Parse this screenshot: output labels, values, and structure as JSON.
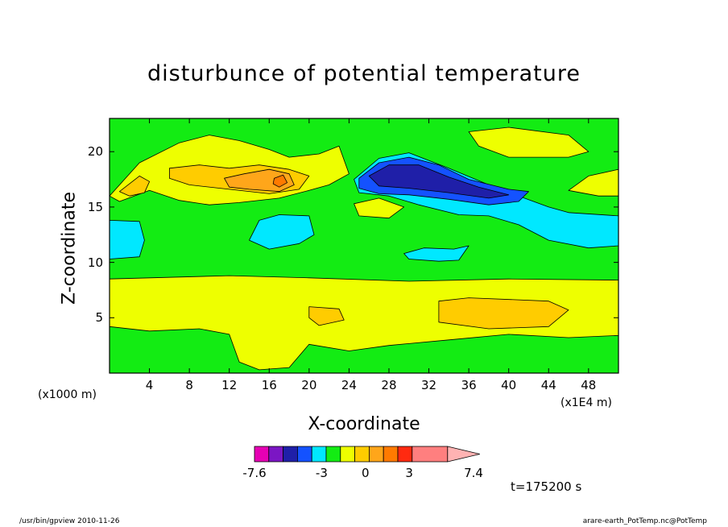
{
  "chart_data": {
    "type": "heatmap",
    "title": "disturbunce of potential temperature",
    "xlabel": "X-coordinate",
    "ylabel": "Z-coordinate",
    "x_unit_left": "(x1000 m)",
    "x_unit_right": "(x1E4 m)",
    "xlim": [
      0,
      51
    ],
    "ylim": [
      0,
      23
    ],
    "x_ticks": [
      4,
      8,
      12,
      16,
      20,
      24,
      28,
      32,
      36,
      40,
      44,
      48
    ],
    "y_ticks": [
      5,
      10,
      15,
      20
    ],
    "time_label": "t=175200 s",
    "colorbar": {
      "colors": [
        "#e600b4",
        "#7b16c4",
        "#1f1fa8",
        "#1452ff",
        "#00e8ff",
        "#13ec13",
        "#eeff00",
        "#ffcc00",
        "#ffa61a",
        "#ff7a00",
        "#ff2a10",
        "#ff7f7f",
        "#ffb3b3"
      ],
      "tick_labels": [
        "-7.6",
        "-3",
        "0",
        "3",
        "7.4"
      ],
      "tick_values": [
        -7.6,
        -3,
        0,
        3,
        7.4
      ]
    },
    "regions": [
      {
        "level": 0,
        "color": "#13ec13",
        "points": [
          [
            0,
            0
          ],
          [
            51,
            0
          ],
          [
            51,
            23
          ],
          [
            0,
            23
          ]
        ]
      },
      {
        "level": 1,
        "color": "#eeff00",
        "points": [
          [
            0,
            8.5
          ],
          [
            12,
            8.8
          ],
          [
            20,
            8.6
          ],
          [
            30,
            8.3
          ],
          [
            40,
            8.5
          ],
          [
            51,
            8.4
          ],
          [
            51,
            3.4
          ],
          [
            46,
            3.2
          ],
          [
            40,
            3.5
          ],
          [
            34,
            3
          ],
          [
            28,
            2.5
          ],
          [
            24,
            2
          ],
          [
            20,
            2.6
          ],
          [
            18,
            0.5
          ],
          [
            15,
            0.3
          ],
          [
            13,
            1
          ],
          [
            12,
            3.5
          ],
          [
            9,
            4
          ],
          [
            4,
            3.8
          ],
          [
            0,
            4.2
          ]
        ]
      },
      {
        "level": 1,
        "color": "#eeff00",
        "points": [
          [
            0,
            16
          ],
          [
            3,
            19
          ],
          [
            7,
            20.8
          ],
          [
            10,
            21.5
          ],
          [
            13,
            21
          ],
          [
            16,
            20.2
          ],
          [
            18,
            19.5
          ],
          [
            21,
            19.8
          ],
          [
            23,
            20.5
          ],
          [
            24,
            18
          ],
          [
            22,
            17
          ],
          [
            20,
            16.5
          ],
          [
            17,
            15.8
          ],
          [
            13,
            15.4
          ],
          [
            10,
            15.2
          ],
          [
            7,
            15.6
          ],
          [
            4,
            16.5
          ],
          [
            1,
            15.5
          ]
        ]
      },
      {
        "level": 1,
        "color": "#eeff00",
        "points": [
          [
            36,
            21.8
          ],
          [
            40,
            22.2
          ],
          [
            46,
            21.5
          ],
          [
            48,
            20
          ],
          [
            46,
            19.5
          ],
          [
            40,
            19.5
          ],
          [
            37,
            20.5
          ]
        ]
      },
      {
        "level": 1,
        "color": "#eeff00",
        "points": [
          [
            46,
            16.5
          ],
          [
            48,
            17.8
          ],
          [
            51,
            18.4
          ],
          [
            51,
            16
          ],
          [
            49,
            16
          ]
        ]
      },
      {
        "level": 1,
        "color": "#eeff00",
        "points": [
          [
            24.5,
            15.3
          ],
          [
            27,
            15.8
          ],
          [
            29.5,
            15
          ],
          [
            28,
            14
          ],
          [
            25,
            14.2
          ]
        ]
      },
      {
        "level": 2,
        "color": "#ffcc00",
        "points": [
          [
            33,
            6.5
          ],
          [
            36,
            6.8
          ],
          [
            44,
            6.5
          ],
          [
            46,
            5.7
          ],
          [
            44,
            4.2
          ],
          [
            38,
            4
          ],
          [
            33,
            4.6
          ]
        ]
      },
      {
        "level": 2,
        "color": "#ffcc00",
        "points": [
          [
            20,
            6
          ],
          [
            23,
            5.8
          ],
          [
            23.5,
            4.8
          ],
          [
            21,
            4.3
          ],
          [
            20,
            5
          ]
        ]
      },
      {
        "level": 2,
        "color": "#ffcc00",
        "points": [
          [
            1,
            16.4
          ],
          [
            3,
            17.8
          ],
          [
            4,
            17.3
          ],
          [
            3.5,
            16.3
          ],
          [
            2,
            16
          ]
        ]
      },
      {
        "level": 2,
        "color": "#ffcc00",
        "points": [
          [
            6,
            18.5
          ],
          [
            9,
            18.8
          ],
          [
            12,
            18.5
          ],
          [
            15,
            18.8
          ],
          [
            18,
            18.4
          ],
          [
            20,
            17.8
          ],
          [
            19,
            16.6
          ],
          [
            16,
            16.2
          ],
          [
            12,
            16.6
          ],
          [
            8,
            17
          ],
          [
            6,
            17.6
          ]
        ]
      },
      {
        "level": 3,
        "color": "#ffa61a",
        "points": [
          [
            11.5,
            17.6
          ],
          [
            13.5,
            18
          ],
          [
            16,
            18.4
          ],
          [
            18,
            18
          ],
          [
            18.5,
            17
          ],
          [
            17,
            16.4
          ],
          [
            14,
            16.6
          ],
          [
            12,
            16.8
          ]
        ]
      },
      {
        "level": 4,
        "color": "#ff7a00",
        "points": [
          [
            16.5,
            17.6
          ],
          [
            17.4,
            17.9
          ],
          [
            17.8,
            17.2
          ],
          [
            17,
            16.8
          ],
          [
            16.4,
            17.1
          ]
        ]
      },
      {
        "level": -1,
        "color": "#00e8ff",
        "points": [
          [
            0,
            13.8
          ],
          [
            3,
            13.7
          ],
          [
            3.5,
            12
          ],
          [
            3,
            10.5
          ],
          [
            0,
            10.3
          ]
        ]
      },
      {
        "level": -1,
        "color": "#00e8ff",
        "points": [
          [
            14,
            12
          ],
          [
            15,
            13.8
          ],
          [
            17,
            14.3
          ],
          [
            20,
            14.2
          ],
          [
            20.5,
            12.5
          ],
          [
            19,
            11.7
          ],
          [
            16,
            11.2
          ]
        ]
      },
      {
        "level": -1,
        "color": "#00e8ff",
        "points": [
          [
            29.5,
            10.8
          ],
          [
            31.5,
            11.3
          ],
          [
            34.5,
            11.2
          ],
          [
            36,
            11.5
          ],
          [
            35,
            10.2
          ],
          [
            33,
            10.1
          ],
          [
            30,
            10.3
          ]
        ]
      },
      {
        "level": -1,
        "color": "#00e8ff",
        "points": [
          [
            24.5,
            17.5
          ],
          [
            27,
            19.4
          ],
          [
            30,
            19.9
          ],
          [
            34,
            18.5
          ],
          [
            38,
            17
          ],
          [
            41,
            16
          ],
          [
            44,
            15
          ],
          [
            46,
            14.5
          ],
          [
            51,
            14.2
          ],
          [
            51,
            11.5
          ],
          [
            48,
            11.3
          ],
          [
            44,
            12
          ],
          [
            41,
            13.4
          ],
          [
            38,
            14.2
          ],
          [
            35,
            14.3
          ],
          [
            31,
            15.2
          ],
          [
            28,
            16
          ],
          [
            25,
            16.3
          ]
        ]
      },
      {
        "level": -2,
        "color": "#1452ff",
        "points": [
          [
            25,
            17.6
          ],
          [
            27,
            19
          ],
          [
            30,
            19.5
          ],
          [
            33,
            18.8
          ],
          [
            36,
            17.5
          ],
          [
            40,
            16.6
          ],
          [
            42,
            16.4
          ],
          [
            41,
            15.5
          ],
          [
            38,
            15.2
          ],
          [
            34,
            15.7
          ],
          [
            30,
            16.1
          ],
          [
            27,
            16.2
          ],
          [
            25,
            16.7
          ]
        ]
      },
      {
        "level": -3,
        "color": "#1f1fa8",
        "points": [
          [
            26,
            17.8
          ],
          [
            28,
            18.8
          ],
          [
            31,
            18.8
          ],
          [
            34,
            17.7
          ],
          [
            37,
            16.8
          ],
          [
            40,
            16.1
          ],
          [
            38,
            15.8
          ],
          [
            34,
            16.3
          ],
          [
            30,
            16.7
          ],
          [
            27,
            16.9
          ]
        ]
      }
    ]
  },
  "footer": {
    "left": "/usr/bin/gpview  2010-11-26",
    "right": "arare-earth_PotTemp.nc@PotTemp"
  }
}
